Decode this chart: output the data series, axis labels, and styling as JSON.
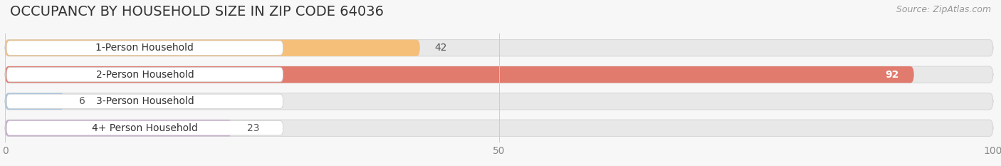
{
  "title": "OCCUPANCY BY HOUSEHOLD SIZE IN ZIP CODE 64036",
  "source": "Source: ZipAtlas.com",
  "categories": [
    "1-Person Household",
    "2-Person Household",
    "3-Person Household",
    "4+ Person Household"
  ],
  "values": [
    42,
    92,
    6,
    23
  ],
  "bar_colors": [
    "#F5BF7A",
    "#E07B6E",
    "#A8C4E0",
    "#C4A8CC"
  ],
  "xlim": [
    0,
    100
  ],
  "xticks": [
    0,
    50,
    100
  ],
  "background_color": "#f7f7f7",
  "bar_bg_color": "#e8e8e8",
  "bar_bg_edge_color": "#d8d8d8",
  "title_fontsize": 14,
  "source_fontsize": 9,
  "label_fontsize": 10,
  "value_fontsize": 10,
  "tick_fontsize": 10
}
